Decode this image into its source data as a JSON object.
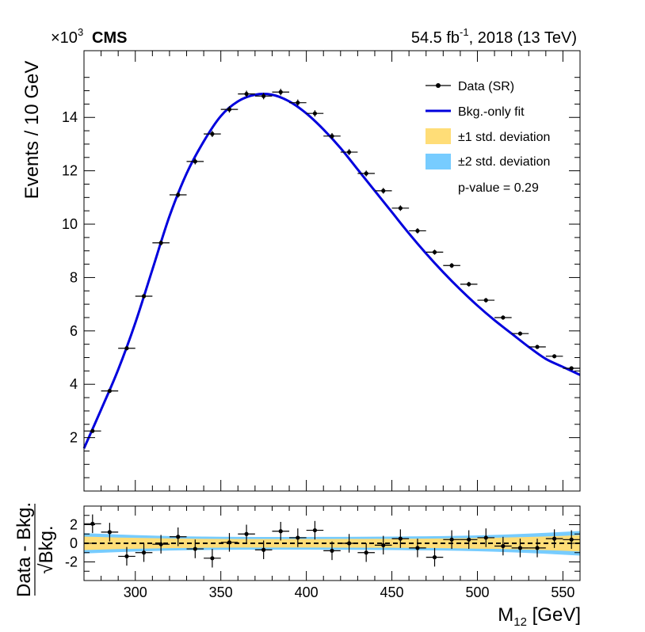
{
  "header": {
    "experiment": "CMS",
    "multiplier_base": "×10",
    "multiplier_exp": "3",
    "lumi_value": "54.5 fb",
    "lumi_exp": "-1",
    "lumi_rest": ", 2018 (13 TeV)"
  },
  "legend": {
    "data": "Data (SR)",
    "fit": "Bkg.-only fit",
    "band1": "±1 std. deviation",
    "band2": "±2 std. deviation",
    "pvalue": "p-value = 0.29"
  },
  "colors": {
    "fit": "#0000dd",
    "band1": "#ffdd77",
    "band2": "#77ccff",
    "data": "#000000"
  },
  "chart_data": [
    {
      "type": "scatter",
      "panel": "main",
      "xlim": [
        270,
        560
      ],
      "ylim": [
        0,
        16.5
      ],
      "ylabel": "Events / 10 GeV",
      "y_multiplier": "×10^3",
      "bin_width": 10,
      "x_ticks": [
        300,
        350,
        400,
        450,
        500,
        550
      ],
      "y_ticks": [
        2,
        4,
        6,
        8,
        10,
        12,
        14
      ],
      "series": [
        {
          "name": "Data (SR)",
          "x": [
            275,
            285,
            295,
            305,
            315,
            325,
            335,
            345,
            355,
            365,
            375,
            385,
            395,
            405,
            415,
            425,
            435,
            445,
            455,
            465,
            475,
            485,
            495,
            505,
            515,
            525,
            535,
            545,
            555
          ],
          "y": [
            2.25,
            3.75,
            5.35,
            7.3,
            9.3,
            11.1,
            12.35,
            13.38,
            14.3,
            14.88,
            14.8,
            14.95,
            14.55,
            14.15,
            13.3,
            12.7,
            11.9,
            11.25,
            10.6,
            9.75,
            8.95,
            8.45,
            7.75,
            7.15,
            6.5,
            5.9,
            5.4,
            5.05,
            4.6
          ]
        },
        {
          "name": "Bkg.-only fit",
          "x": [
            270,
            280,
            290,
            300,
            310,
            320,
            330,
            340,
            350,
            360,
            370,
            380,
            390,
            400,
            410,
            420,
            430,
            440,
            450,
            460,
            470,
            480,
            490,
            500,
            510,
            520,
            530,
            540,
            550,
            560
          ],
          "y": [
            1.6,
            3.05,
            4.55,
            6.3,
            8.3,
            10.3,
            11.9,
            13.1,
            14.05,
            14.6,
            14.85,
            14.85,
            14.6,
            14.15,
            13.55,
            12.85,
            12.05,
            11.25,
            10.45,
            9.65,
            8.9,
            8.2,
            7.55,
            6.95,
            6.4,
            5.9,
            5.4,
            4.95,
            4.65,
            4.35
          ]
        }
      ]
    },
    {
      "type": "scatter",
      "panel": "ratio",
      "xlim": [
        270,
        560
      ],
      "ylim": [
        -4,
        4
      ],
      "xlabel": "M12 [GeV]",
      "ylabel": "Data - Bkg. / √Bkg.",
      "y_ticks": [
        -2,
        0,
        2
      ],
      "x_ticks": [
        300,
        350,
        400,
        450,
        500,
        550
      ],
      "series": [
        {
          "name": "pulls",
          "x": [
            275,
            285,
            295,
            305,
            315,
            325,
            335,
            345,
            355,
            365,
            375,
            385,
            395,
            405,
            415,
            425,
            435,
            445,
            455,
            465,
            475,
            485,
            495,
            505,
            515,
            525,
            535,
            545,
            555
          ],
          "y": [
            2.1,
            1.2,
            -1.4,
            -1.0,
            -0.1,
            0.7,
            -0.6,
            -1.6,
            0.1,
            1.0,
            -0.7,
            1.3,
            0.6,
            1.4,
            -0.8,
            0.0,
            -1.0,
            -0.2,
            0.5,
            -0.5,
            -1.5,
            0.4,
            0.4,
            0.6,
            -0.3,
            -0.5,
            -0.5,
            0.5,
            0.4
          ]
        }
      ],
      "band1_halfwidth": [
        0.72,
        0.67,
        0.62,
        0.58,
        0.55,
        0.52,
        0.5,
        0.48,
        0.47,
        0.46,
        0.46,
        0.46,
        0.46,
        0.46,
        0.46,
        0.47,
        0.47,
        0.48,
        0.48,
        0.49,
        0.5,
        0.52,
        0.54,
        0.57,
        0.6,
        0.64,
        0.68,
        0.73,
        0.8,
        0.88
      ],
      "band2_halfwidth": [
        1.1,
        1.02,
        0.95,
        0.88,
        0.83,
        0.78,
        0.74,
        0.72,
        0.7,
        0.69,
        0.68,
        0.68,
        0.68,
        0.68,
        0.69,
        0.69,
        0.7,
        0.71,
        0.72,
        0.74,
        0.76,
        0.78,
        0.81,
        0.85,
        0.9,
        0.97,
        1.04,
        1.13,
        1.22,
        1.32
      ],
      "band_x": [
        270,
        280,
        290,
        300,
        310,
        320,
        330,
        340,
        350,
        360,
        370,
        380,
        390,
        400,
        410,
        420,
        430,
        440,
        450,
        460,
        470,
        480,
        490,
        500,
        510,
        520,
        530,
        540,
        550,
        560
      ]
    }
  ]
}
